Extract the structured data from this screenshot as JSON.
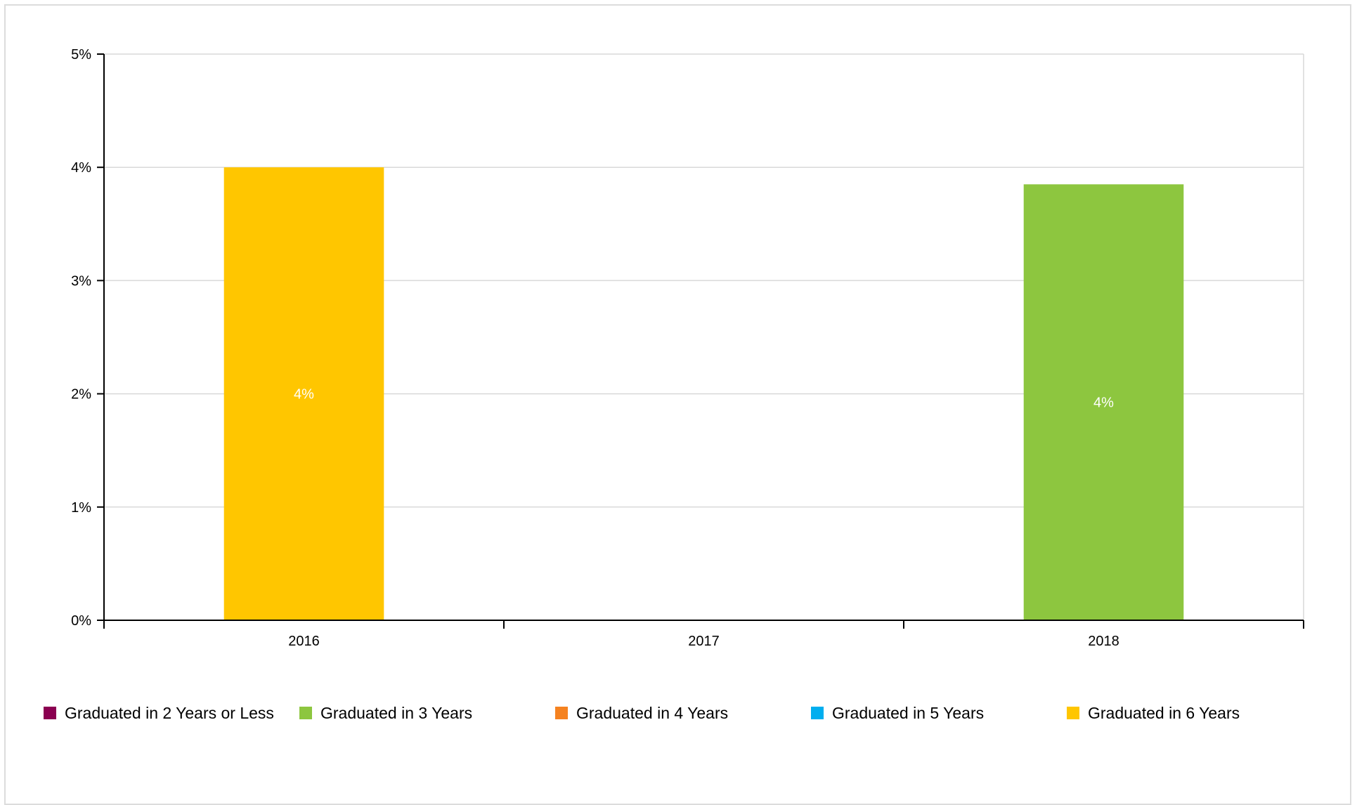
{
  "chart_data": {
    "type": "bar",
    "stacked": true,
    "categories": [
      "2016",
      "2017",
      "2018"
    ],
    "ylim": [
      0,
      5
    ],
    "yticks": [
      {
        "value": 0,
        "label": "0%"
      },
      {
        "value": 1,
        "label": "1%"
      },
      {
        "value": 2,
        "label": "2%"
      },
      {
        "value": 3,
        "label": "3%"
      },
      {
        "value": 4,
        "label": "4%"
      },
      {
        "value": 5,
        "label": "5%"
      }
    ],
    "grid": true,
    "legend_position": "bottom",
    "series": [
      {
        "name": "Graduated in 2 Years or Less",
        "color": "#8b0051",
        "values": [
          0,
          0,
          0
        ],
        "labels": [
          "",
          "",
          ""
        ]
      },
      {
        "name": "Graduated in 3 Years",
        "color": "#8dc63f",
        "values": [
          0,
          0,
          3.85
        ],
        "labels": [
          "",
          "",
          "4%"
        ]
      },
      {
        "name": "Graduated in 4 Years",
        "color": "#f58220",
        "values": [
          0,
          0,
          0
        ],
        "labels": [
          "",
          "",
          ""
        ]
      },
      {
        "name": "Graduated in 5 Years",
        "color": "#00aeef",
        "values": [
          0,
          0,
          0
        ],
        "labels": [
          "",
          "",
          ""
        ]
      },
      {
        "name": "Graduated in 6 Years",
        "color": "#ffc600",
        "values": [
          4.0,
          0,
          0
        ],
        "labels": [
          "4%",
          "",
          ""
        ]
      }
    ]
  }
}
